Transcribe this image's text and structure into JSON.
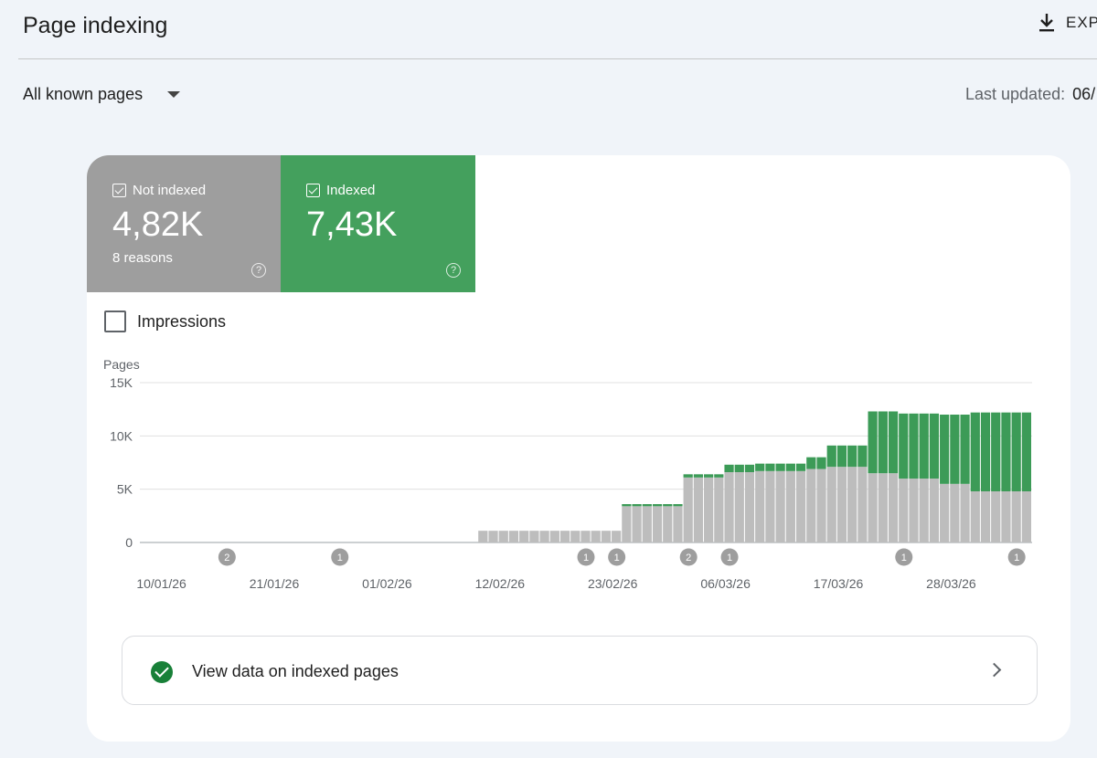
{
  "header": {
    "title": "Page indexing",
    "export_label": "EXP"
  },
  "filter": {
    "selected": "All known pages"
  },
  "last_updated": {
    "label": "Last updated:",
    "value": "06/"
  },
  "metrics": {
    "not_indexed": {
      "label": "Not indexed",
      "value": "4,82K",
      "sub": "8 reasons",
      "color": "#9e9e9e"
    },
    "indexed": {
      "label": "Indexed",
      "value": "7,43K",
      "color": "#44a05d"
    }
  },
  "impressions": {
    "label": "Impressions"
  },
  "chart_data": {
    "type": "bar",
    "stacked": true,
    "ylabel": "Pages",
    "ylim": [
      0,
      15000
    ],
    "yticks": [
      "15K",
      "10K",
      "5K",
      "0"
    ],
    "ytick_values": [
      15000,
      10000,
      5000,
      0
    ],
    "xticks": [
      "10/01/26",
      "21/01/26",
      "01/02/26",
      "12/02/26",
      "23/02/26",
      "06/03/26",
      "17/03/26",
      "28/03/26"
    ],
    "grid": true,
    "series": [
      {
        "name": "Not indexed",
        "color": "#bdbdbd",
        "values": [
          0,
          0,
          0,
          0,
          0,
          0,
          0,
          0,
          0,
          0,
          0,
          0,
          0,
          0,
          0,
          0,
          0,
          0,
          0,
          0,
          0,
          0,
          0,
          0,
          0,
          0,
          0,
          0,
          0,
          0,
          0,
          0,
          0,
          1100,
          1100,
          1100,
          1100,
          1100,
          1100,
          1100,
          1100,
          1100,
          1100,
          1100,
          1100,
          1100,
          1100,
          3400,
          3400,
          3400,
          3400,
          3400,
          3400,
          6100,
          6100,
          6100,
          6100,
          6600,
          6600,
          6600,
          6700,
          6700,
          6700,
          6700,
          6700,
          6900,
          6900,
          7100,
          7100,
          7100,
          7100,
          6500,
          6500,
          6500,
          6000,
          6000,
          6000,
          6000,
          5500,
          5500,
          5500,
          4800,
          4800,
          4800,
          4800,
          4800,
          4800
        ]
      },
      {
        "name": "Indexed",
        "color": "#3c9b57",
        "values": [
          0,
          0,
          0,
          0,
          0,
          0,
          0,
          0,
          0,
          0,
          0,
          0,
          0,
          0,
          0,
          0,
          0,
          0,
          0,
          0,
          0,
          0,
          0,
          0,
          0,
          0,
          0,
          0,
          0,
          0,
          0,
          0,
          0,
          0,
          0,
          0,
          0,
          0,
          0,
          0,
          0,
          0,
          0,
          0,
          0,
          0,
          0,
          200,
          200,
          200,
          200,
          200,
          200,
          300,
          300,
          300,
          300,
          700,
          700,
          700,
          700,
          700,
          700,
          700,
          700,
          1100,
          1100,
          2000,
          2000,
          2000,
          2000,
          5800,
          5800,
          5800,
          6100,
          6100,
          6100,
          6100,
          6500,
          6500,
          6500,
          7400,
          7400,
          7400,
          7400,
          7400,
          7400
        ]
      }
    ],
    "annotations": [
      {
        "label": "2",
        "index": 8
      },
      {
        "label": "1",
        "index": 19
      },
      {
        "label": "1",
        "index": 43
      },
      {
        "label": "1",
        "index": 46
      },
      {
        "label": "2",
        "index": 53
      },
      {
        "label": "1",
        "index": 57
      },
      {
        "label": "1",
        "index": 74
      },
      {
        "label": "1",
        "index": 85
      }
    ]
  },
  "view_data": {
    "label": "View data on indexed pages"
  }
}
